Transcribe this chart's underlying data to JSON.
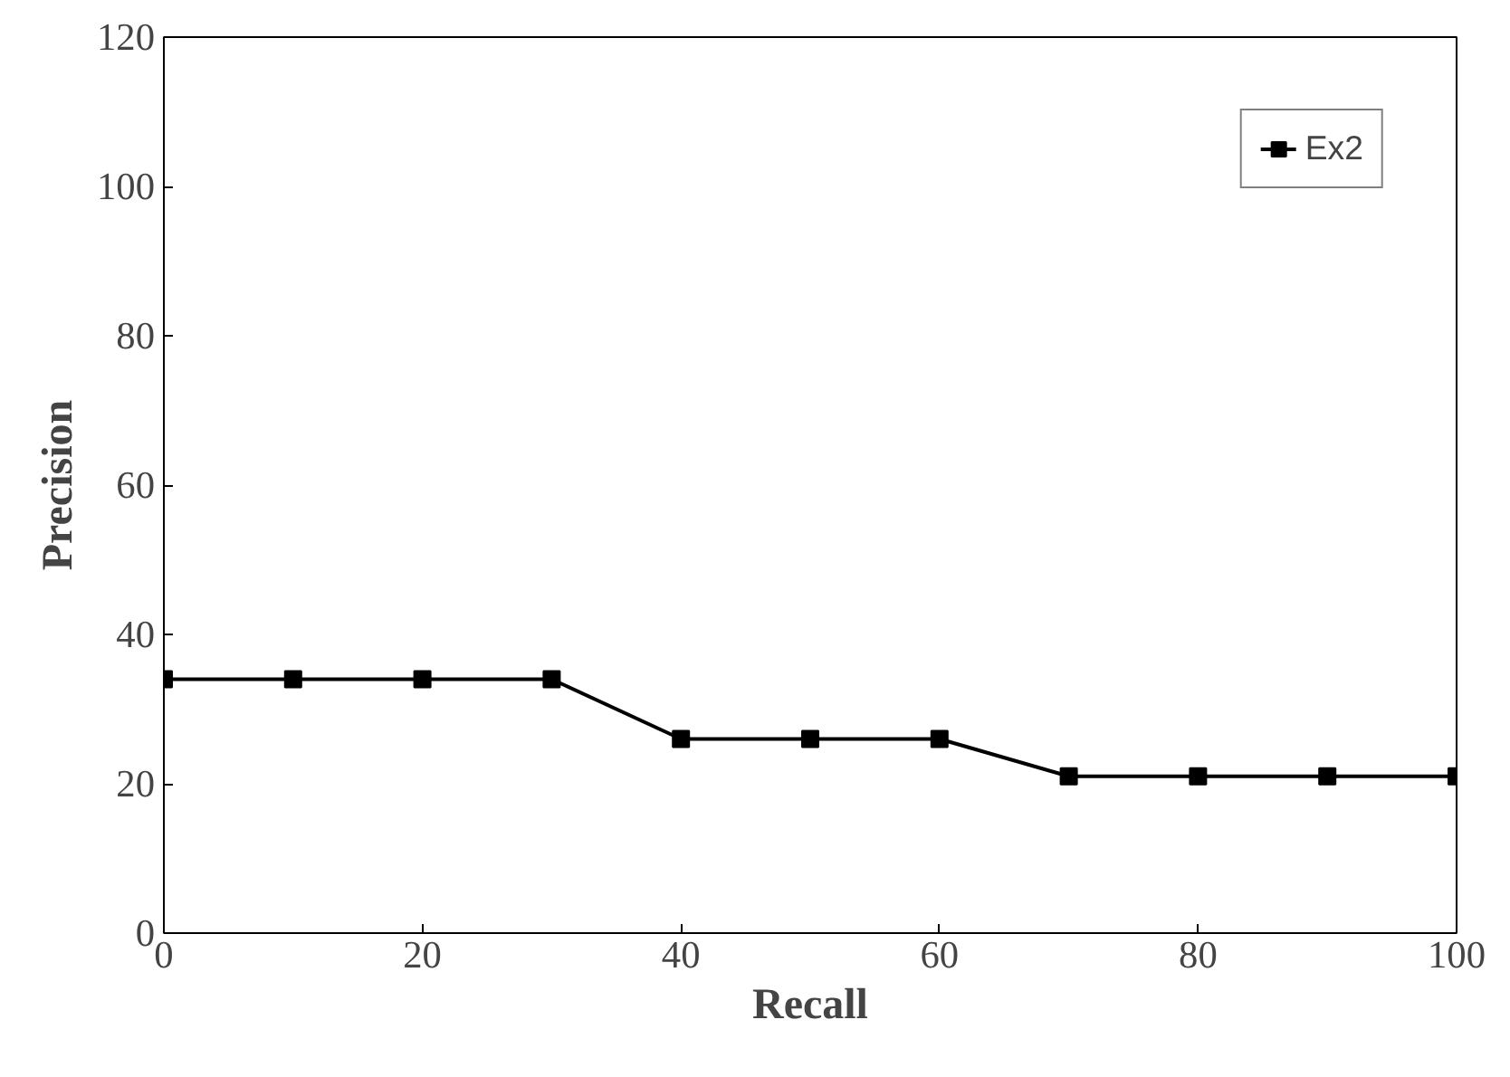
{
  "chart_data": {
    "type": "line",
    "xlabel": "Recall",
    "ylabel": "Precision",
    "x": [
      0,
      10,
      20,
      30,
      40,
      50,
      60,
      70,
      80,
      90,
      100
    ],
    "series": [
      {
        "name": "Ex2",
        "color": "#000000",
        "values": [
          34,
          34,
          34,
          34,
          26,
          26,
          26,
          21,
          21,
          21,
          21
        ]
      }
    ],
    "xlim": [
      0,
      100
    ],
    "ylim": [
      0,
      120
    ],
    "xticks": [
      0,
      20,
      40,
      60,
      80,
      100
    ],
    "yticks": [
      0,
      20,
      40,
      60,
      80,
      100,
      120
    ],
    "grid": false,
    "legend": "top right",
    "marker": "square",
    "line_style": "solid"
  }
}
